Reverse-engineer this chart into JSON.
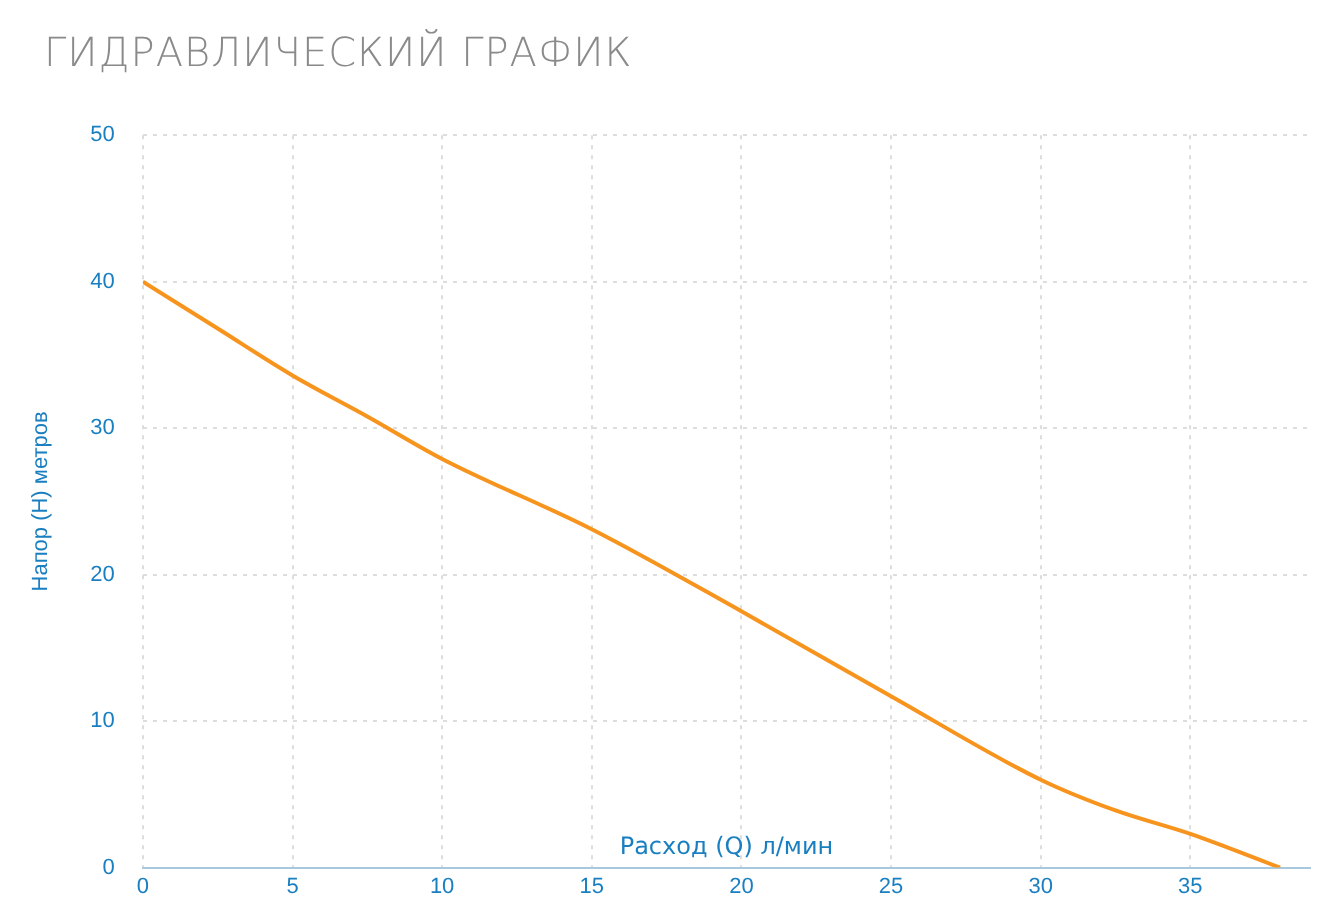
{
  "chart_data": {
    "type": "line",
    "title": "ГИДРАВЛИЧЕСКИЙ ГРАФИК",
    "xlabel": "Расход (Q) л/мин",
    "ylabel": "Напор (H) метров",
    "x": [
      0,
      2.5,
      5,
      7.5,
      10,
      15,
      20,
      25,
      30,
      32.5,
      35,
      38
    ],
    "series": [
      {
        "color": "#f7941d",
        "values": [
          40,
          36.8,
          33.6,
          30.8,
          27.9,
          23.1,
          17.5,
          11.7,
          6,
          3.9,
          2.3,
          0
        ]
      }
    ],
    "xlim": [
      0,
      39
    ],
    "xticks": [
      0,
      5,
      10,
      15,
      20,
      25,
      30,
      35
    ],
    "ylim": [
      0,
      50
    ],
    "yticks": [
      0,
      10,
      20,
      30,
      40,
      50
    ],
    "grid": true,
    "legend": false,
    "marker": "none"
  }
}
